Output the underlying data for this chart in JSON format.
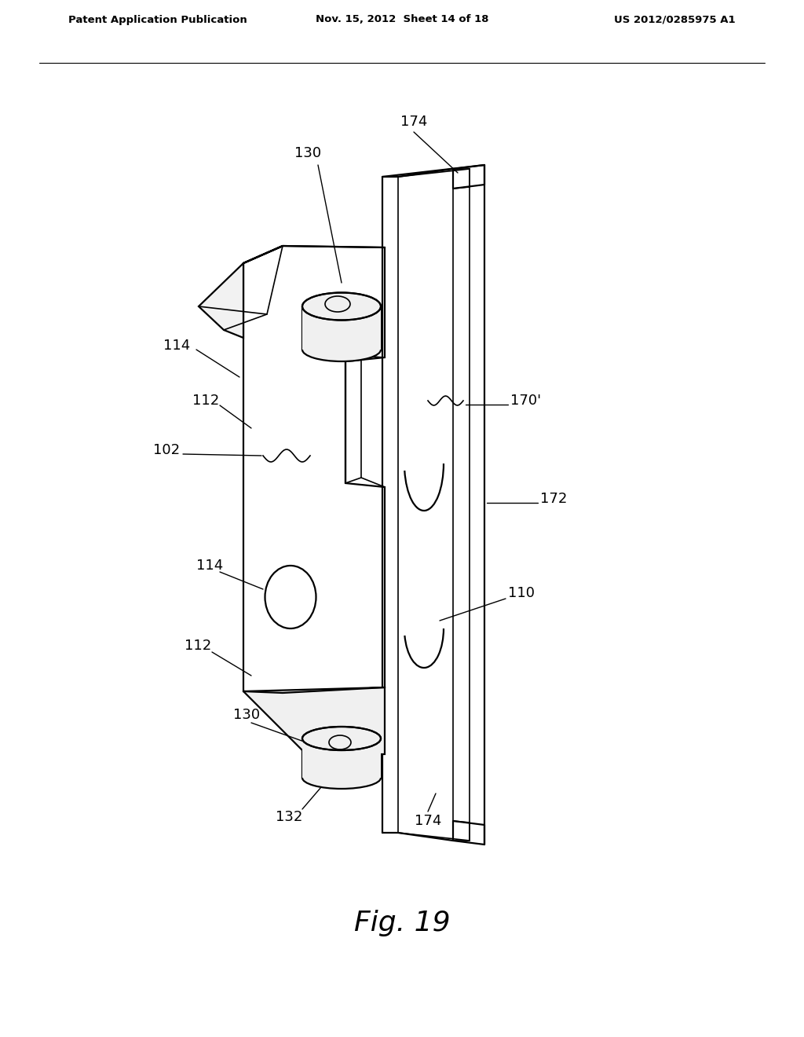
{
  "header_left": "Patent Application Publication",
  "header_mid": "Nov. 15, 2012  Sheet 14 of 18",
  "header_right": "US 2012/0285975 A1",
  "fig_label": "Fig. 19",
  "bg_color": "#ffffff",
  "line_color": "#000000"
}
